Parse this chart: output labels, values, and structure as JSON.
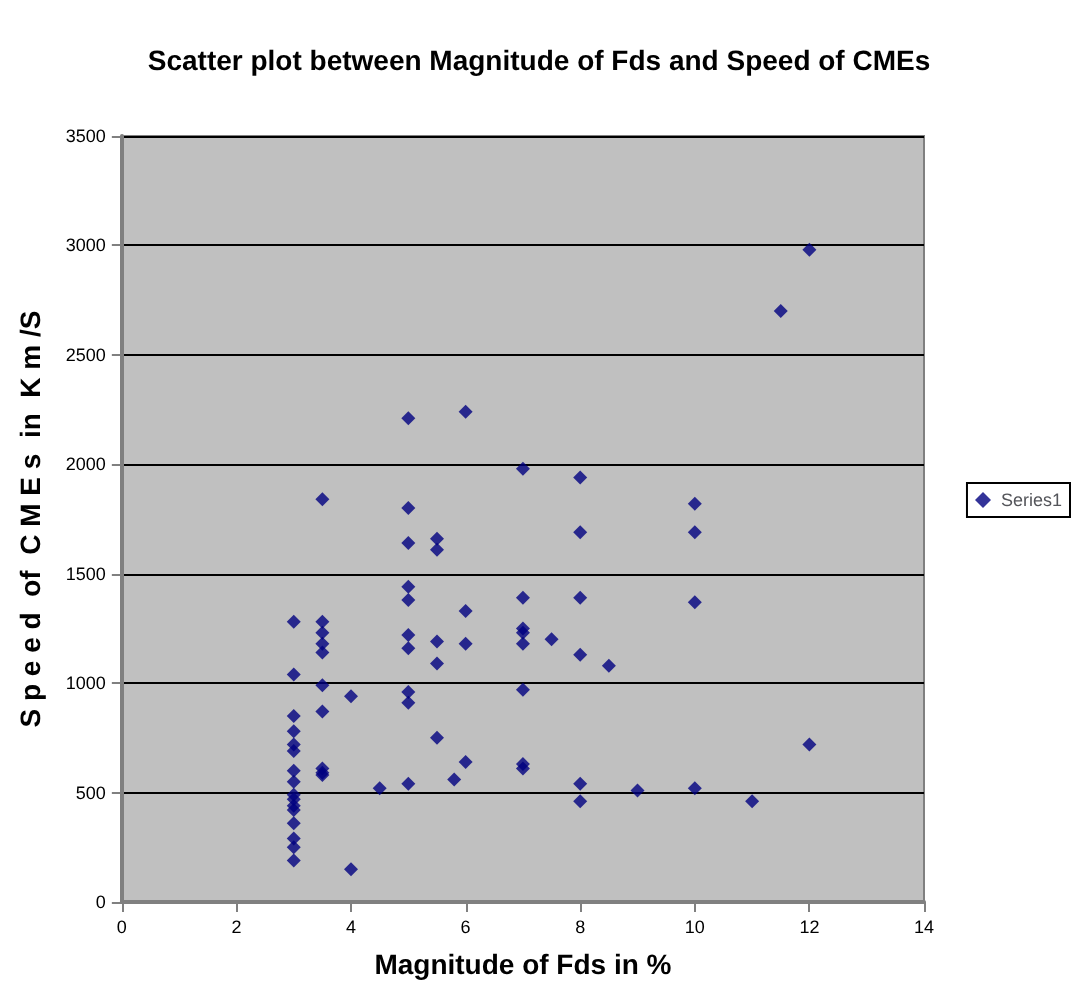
{
  "chart_data": {
    "type": "scatter",
    "title": "Scatter plot between Magnitude of Fds and Speed of CMEs",
    "xlabel": "Magnitude of Fds in %",
    "ylabel": "S p e e d  of  C M E s  in  K m /S",
    "series": [
      {
        "name": "Series1",
        "color": "#000080",
        "x": [
          3,
          3,
          3,
          3,
          3,
          3,
          3,
          3,
          3,
          3,
          3,
          3,
          3,
          3,
          3,
          3,
          3.5,
          3.5,
          3.5,
          3.5,
          3.5,
          3.5,
          3.5,
          3.5,
          3.5,
          3.5,
          4,
          4,
          4.5,
          5,
          5,
          5,
          5,
          5,
          5,
          5,
          5,
          5,
          5,
          5.5,
          5.5,
          5.5,
          5.5,
          5.5,
          5.8,
          6,
          6,
          6,
          6,
          7,
          7,
          7,
          7,
          7,
          7,
          7,
          7,
          7.5,
          8,
          8,
          8,
          8,
          8,
          8,
          8.5,
          9,
          10,
          10,
          10,
          10,
          11,
          11.5,
          12,
          12
        ],
        "values": [
          1280,
          1040,
          850,
          780,
          720,
          690,
          600,
          550,
          490,
          470,
          440,
          420,
          360,
          290,
          250,
          190,
          1840,
          1280,
          1230,
          1180,
          1140,
          990,
          870,
          610,
          590,
          580,
          940,
          150,
          520,
          2210,
          1800,
          1640,
          1440,
          1380,
          1220,
          1160,
          960,
          910,
          540,
          1660,
          1610,
          1190,
          1090,
          750,
          560,
          2240,
          1330,
          1180,
          640,
          1980,
          1390,
          1250,
          1230,
          1180,
          970,
          630,
          610,
          1200,
          1940,
          1690,
          1390,
          1130,
          540,
          460,
          1080,
          510,
          1820,
          1690,
          1370,
          520,
          460,
          2700,
          2980,
          720
        ]
      }
    ],
    "xlim": [
      0,
      14
    ],
    "xticks": [
      0,
      2,
      4,
      6,
      8,
      10,
      12,
      14
    ],
    "ylim": [
      0,
      3500
    ],
    "yticks": [
      0,
      500,
      1000,
      1500,
      2000,
      2500,
      3000,
      3500
    ],
    "grid": "y",
    "legend": "right",
    "marker": "diamond"
  }
}
